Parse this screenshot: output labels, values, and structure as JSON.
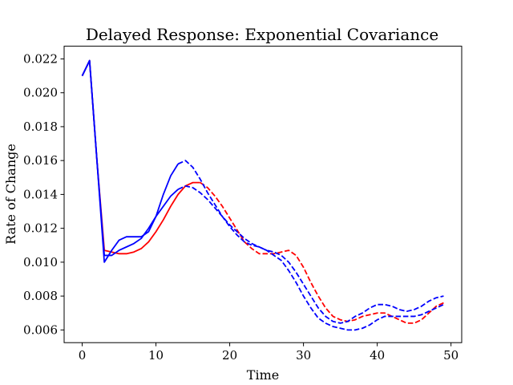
{
  "chart_data": {
    "type": "line",
    "title": "Delayed Response: Exponential Covariance",
    "xlabel": "Time",
    "ylabel": "Rate of Change",
    "xlim": [
      -2.45,
      51.45
    ],
    "ylim": [
      0.00525,
      0.02275
    ],
    "xticks": [
      0,
      10,
      20,
      30,
      40,
      50
    ],
    "yticks": [
      0.006,
      0.008,
      0.01,
      0.012,
      0.014,
      0.016,
      0.018,
      0.02,
      0.022
    ],
    "ytick_labels": [
      "0.006",
      "0.008",
      "0.010",
      "0.012",
      "0.014",
      "0.016",
      "0.018",
      "0.020",
      "0.022"
    ],
    "grid": false,
    "legend": "none",
    "series": [
      {
        "color": "#ff0000",
        "style": "solid",
        "x": [
          0,
          1,
          2,
          3,
          4,
          5,
          6,
          7,
          8,
          9,
          10,
          11,
          12,
          13,
          14,
          15,
          16
        ],
        "y": [
          0.021,
          0.0219,
          0.016,
          0.0107,
          0.0106,
          0.0105,
          0.0105,
          0.0106,
          0.0108,
          0.0112,
          0.0118,
          0.0125,
          0.0133,
          0.014,
          0.0145,
          0.0147,
          0.0147
        ]
      },
      {
        "color": "#ff0000",
        "style": "dashed",
        "x": [
          16,
          17,
          18,
          19,
          20,
          21,
          22,
          23,
          24,
          25,
          26,
          27,
          28,
          29,
          30,
          31,
          32,
          33,
          34,
          35,
          36,
          37,
          38,
          39,
          40,
          41,
          42,
          43,
          44,
          45,
          46,
          47,
          48,
          49
        ],
        "y": [
          0.0147,
          0.0144,
          0.0139,
          0.0133,
          0.0126,
          0.0119,
          0.0112,
          0.0108,
          0.0105,
          0.0105,
          0.0105,
          0.0106,
          0.0107,
          0.0104,
          0.0097,
          0.0088,
          0.008,
          0.0073,
          0.0068,
          0.0066,
          0.0065,
          0.0066,
          0.0068,
          0.0069,
          0.007,
          0.007,
          0.0068,
          0.0066,
          0.0064,
          0.0064,
          0.0066,
          0.007,
          0.0074,
          0.0076
        ]
      },
      {
        "color": "#0000ff",
        "style": "solid",
        "x": [
          0,
          1,
          2,
          3,
          4,
          5,
          6,
          7,
          8,
          9,
          10,
          11,
          12,
          13
        ],
        "y": [
          0.021,
          0.0219,
          0.016,
          0.01,
          0.0107,
          0.0113,
          0.0115,
          0.0115,
          0.0115,
          0.0118,
          0.0127,
          0.014,
          0.0151,
          0.0158
        ]
      },
      {
        "color": "#0000ff",
        "style": "dashed",
        "x": [
          13,
          14,
          15,
          16,
          17,
          18,
          19,
          20,
          21,
          22,
          23,
          24,
          25,
          26,
          27,
          28,
          29,
          30,
          31,
          32,
          33,
          34,
          35,
          36,
          37,
          38,
          39,
          40,
          41,
          42,
          43,
          44,
          45,
          46,
          47,
          48,
          49
        ],
        "y": [
          0.0158,
          0.016,
          0.0156,
          0.0149,
          0.0141,
          0.0134,
          0.0127,
          0.0121,
          0.0116,
          0.0112,
          0.011,
          0.0109,
          0.0107,
          0.0106,
          0.0104,
          0.01,
          0.0094,
          0.0087,
          0.008,
          0.0073,
          0.0068,
          0.0065,
          0.0064,
          0.0065,
          0.0068,
          0.007,
          0.0073,
          0.0075,
          0.0075,
          0.0074,
          0.0072,
          0.0071,
          0.0072,
          0.0074,
          0.0077,
          0.0079,
          0.008
        ]
      },
      {
        "color": "#0000ff",
        "style": "solid",
        "x": [
          0,
          1,
          2,
          3,
          4,
          5,
          6,
          7,
          8,
          9,
          10,
          11,
          12,
          13
        ],
        "y": [
          0.021,
          0.0219,
          0.016,
          0.0104,
          0.0104,
          0.0107,
          0.0109,
          0.0111,
          0.0114,
          0.012,
          0.0127,
          0.0133,
          0.0139,
          0.0143
        ]
      },
      {
        "color": "#0000ff",
        "style": "dashed",
        "x": [
          13,
          14,
          15,
          16,
          17,
          18,
          19,
          20,
          21,
          22,
          23,
          24,
          25,
          26,
          27,
          28,
          29,
          30,
          31,
          32,
          33,
          34,
          35,
          36,
          37,
          38,
          39,
          40,
          41,
          42,
          43,
          44,
          45,
          46,
          47,
          48,
          49
        ],
        "y": [
          0.0143,
          0.0145,
          0.0144,
          0.0141,
          0.0137,
          0.0132,
          0.0127,
          0.0122,
          0.0118,
          0.0114,
          0.0111,
          0.0109,
          0.0107,
          0.0104,
          0.0101,
          0.0095,
          0.0088,
          0.008,
          0.0073,
          0.0067,
          0.0064,
          0.0062,
          0.0061,
          0.006,
          0.006,
          0.0061,
          0.0063,
          0.0066,
          0.0068,
          0.0068,
          0.0068,
          0.0068,
          0.0068,
          0.0069,
          0.0071,
          0.0073,
          0.0075
        ]
      }
    ]
  }
}
